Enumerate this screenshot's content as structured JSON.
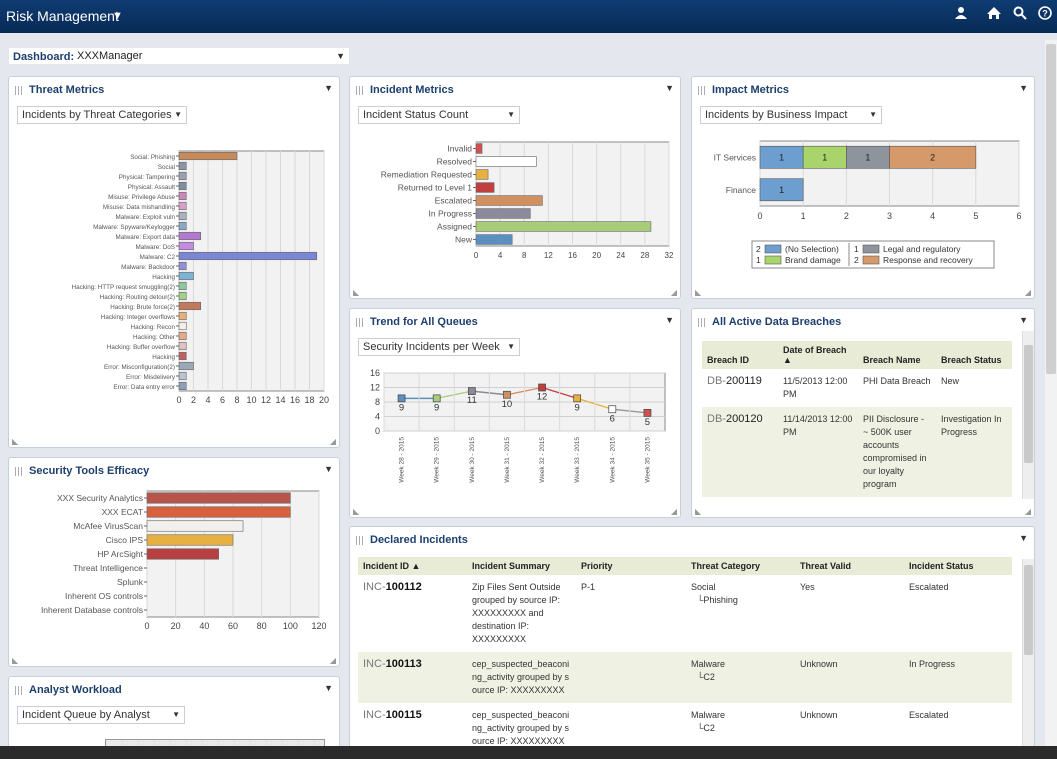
{
  "header": {
    "app_title": "Risk Management",
    "caret": "▼",
    "icons": [
      "user-icon",
      "home-icon",
      "search-icon",
      "help-icon"
    ]
  },
  "dashboard": {
    "label": "Dashboard:",
    "value": "XXXManager"
  },
  "threat": {
    "title": "Threat Metrics",
    "select": "Incidents by Threat Categories",
    "chart_data": {
      "type": "bar",
      "categories": [
        "Social: Phishing",
        "Social",
        "Physical: Tampering",
        "Physical: Assault",
        "Misuse: Privilege Abuse",
        "Misuse: Data mishandling",
        "Malware: Exploit vuln",
        "Malware: Spyware/Keylogger",
        "Malware: Export data",
        "Malware: DoS",
        "Malware: C2",
        "Malware: Backdoor",
        "Hacking",
        "Hacking: HTTP request smuggling(2)",
        "Hacking: Routing detour(2)",
        "Hacking: Brute force(2)",
        "Hacking: Integer overflows",
        "Hacking: Recon",
        "Hacking: Other",
        "Hacking: Buffer overflow",
        "Hacking",
        "Error: Misconfiguration(2)",
        "Error: Misdelivery",
        "Error: Data entry error"
      ],
      "values": [
        8,
        1,
        1,
        1,
        1,
        1,
        1,
        1,
        3,
        2,
        19,
        1,
        2,
        1,
        1,
        3,
        1,
        1,
        1,
        1,
        1,
        2,
        1,
        1
      ],
      "colors": [
        "#c58b5b",
        "#8a96a4",
        "#9aa2b0",
        "#7f8fa0",
        "#c987b9",
        "#d7a0c7",
        "#aab4c0",
        "#8aa9c9",
        "#b17ad0",
        "#c58be0",
        "#7b86d6",
        "#9090d8",
        "#7fb3d6",
        "#8fc7a0",
        "#a3cf8a",
        "#c07a5c",
        "#e8b078",
        "#f4f0e8",
        "#e7a98a",
        "#e0c0c0",
        "#c06060",
        "#9aa9b8",
        "#b8c4d0",
        "#8aa0b6"
      ],
      "xticks": [
        0,
        2,
        4,
        6,
        8,
        10,
        12,
        14,
        16,
        18,
        20
      ],
      "xlim": [
        0,
        20
      ]
    }
  },
  "incident": {
    "title": "Incident Metrics",
    "select": "Incident Status Count",
    "chart_data": {
      "type": "bar",
      "categories": [
        "Invalid",
        "Resolved",
        "Remediation Requested",
        "Returned to Level 1",
        "Escalated",
        "In Progress",
        "Assigned",
        "New"
      ],
      "values": [
        1,
        10,
        2,
        3,
        11,
        9,
        29,
        6
      ],
      "colors": [
        "#d05050",
        "#ffffff",
        "#e8b040",
        "#c04040",
        "#d09060",
        "#8a8a9a",
        "#a8cc78",
        "#5b8fc0"
      ],
      "xticks": [
        0,
        4,
        8,
        12,
        16,
        20,
        24,
        28,
        32
      ],
      "xlim": [
        0,
        32
      ]
    }
  },
  "impact": {
    "title": "Impact Metrics",
    "select": "Incidents by Business Impact",
    "chart_data": {
      "type": "bar",
      "categories": [
        "IT Services",
        "Finance"
      ],
      "series": [
        {
          "name": "(No Selection)",
          "values": [
            1,
            1
          ],
          "color": "#6c9fd0"
        },
        {
          "name": "Brand damage",
          "values": [
            1,
            0
          ],
          "color": "#a9d46c"
        },
        {
          "name": "Legal and regulatory",
          "values": [
            1,
            0
          ],
          "color": "#8d949c"
        },
        {
          "name": "Response and recovery",
          "values": [
            2,
            0
          ],
          "color": "#d69a6a"
        }
      ],
      "xticks": [
        0,
        1,
        2,
        3,
        4,
        5,
        6
      ],
      "xlim": [
        0,
        6
      ]
    },
    "legend": [
      {
        "count": "2",
        "name": "(No Selection)",
        "color": "#6c9fd0"
      },
      {
        "count": "1",
        "name": "Brand damage",
        "color": "#a9d46c"
      },
      {
        "count": "1",
        "name": "Legal and regulatory",
        "color": "#8d949c"
      },
      {
        "count": "2",
        "name": "Response and recovery",
        "color": "#d69a6a"
      }
    ]
  },
  "trend": {
    "title": "Trend for All Queues",
    "select": "Security Incidents per Week",
    "chart_data": {
      "type": "line",
      "categories": [
        "Week 28 - 2015",
        "Week 29 - 2015",
        "Week 30 - 2015",
        "Week 31 - 2015",
        "Week 32 - 2015",
        "Week 33 - 2015",
        "Week 34 - 2015",
        "Week 35 - 2015"
      ],
      "values": [
        9,
        9,
        11,
        10,
        12,
        9,
        6,
        5
      ],
      "colors": [
        "#5b8fc0",
        "#a8cc78",
        "#8a8a9a",
        "#d09060",
        "#c04040",
        "#e8b040",
        "#ffffff",
        "#d05050"
      ],
      "yticks": [
        0,
        4,
        8,
        12,
        16
      ],
      "ylim": [
        0,
        16
      ]
    }
  },
  "breaches": {
    "title": "All Active Data Breaches",
    "headers": [
      "Breach ID",
      "Date of Breach ▲",
      "Breach Name",
      "Breach Status"
    ],
    "rows": [
      {
        "prefix": "DB-",
        "id": "200119",
        "date": "11/5/2013 12:00 PM",
        "name": "PHI Data Breach",
        "status": "New"
      },
      {
        "prefix": "DB-",
        "id": "200120",
        "date": "11/14/2013 12:00 PM",
        "name": "PII Disclosure - ~ 500K user accounts compromised in our loyalty program",
        "status": "Investigation In Progress"
      }
    ]
  },
  "tools": {
    "title": "Security Tools Efficacy",
    "chart_data": {
      "type": "bar",
      "categories": [
        "XXX Security Analytics",
        "XXX ECAT",
        "McAfee VirusScan",
        "Cisco IPS",
        "HP ArcSight",
        "Threat Intelligence",
        "Splunk",
        "Inherent OS controls",
        "Inherent Database controls"
      ],
      "values": [
        100,
        100,
        67,
        60,
        50,
        0,
        0,
        0,
        0
      ],
      "colors": [
        "#b9544a",
        "#d8603e",
        "#f2f0ec",
        "#e8b040",
        "#b84040",
        "#cccccc",
        "#cccccc",
        "#cccccc",
        "#cccccc"
      ],
      "xticks": [
        0,
        20,
        40,
        60,
        80,
        100,
        120
      ],
      "xlim": [
        0,
        120
      ]
    }
  },
  "analyst": {
    "title": "Analyst Workload",
    "select": "Incident Queue by Analyst"
  },
  "declared": {
    "title": "Declared Incidents",
    "headers": [
      "Incident ID ▲",
      "Incident Summary",
      "Priority",
      "Threat Category",
      "Threat Valid",
      "Incident Status"
    ],
    "rows": [
      {
        "prefix": "INC-",
        "id": "100112",
        "summary": "Zip Files Sent Outside grouped by source IP: XXXXXXXXX and destination IP: XXXXXXXXX",
        "priority": "P-1",
        "cat": "Social",
        "sub": "Phishing",
        "valid": "Yes",
        "status": "Escalated"
      },
      {
        "prefix": "INC-",
        "id": "100113",
        "summary": "cep_suspected_beaconing_activity grouped by source IP: XXXXXXXXX",
        "priority": "",
        "cat": "Malware",
        "sub": "C2",
        "valid": "Unknown",
        "status": "In Progress"
      },
      {
        "prefix": "INC-",
        "id": "100115",
        "summary": "cep_suspected_beaconing_activity grouped by source IP: XXXXXXXXX",
        "priority": "",
        "cat": "Malware",
        "sub": "C2",
        "valid": "Unknown",
        "status": "Escalated"
      }
    ]
  }
}
